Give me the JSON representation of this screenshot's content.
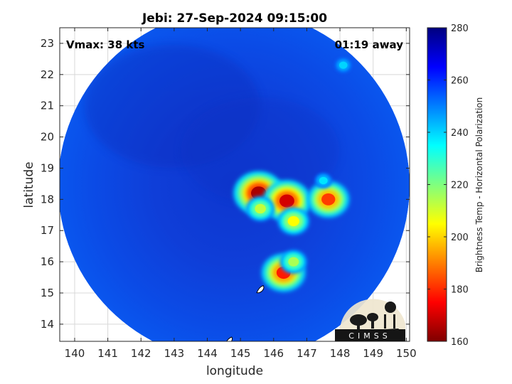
{
  "chart_data": {
    "type": "heatmap",
    "title": "Jebi: 27-Sep-2024 09:15:00",
    "annotations": {
      "vmax": "Vmax: 38 kts",
      "time_away": "01:19 away"
    },
    "xlabel": "longitude",
    "ylabel": "latitude",
    "xlim": [
      139.55,
      150.1
    ],
    "ylim": [
      13.45,
      23.5
    ],
    "x_ticks": [
      140,
      141,
      142,
      143,
      144,
      145,
      146,
      147,
      148,
      149,
      150
    ],
    "y_ticks": [
      14,
      15,
      16,
      17,
      18,
      19,
      20,
      21,
      22,
      23
    ],
    "grid": true,
    "colorbar": {
      "label": "Brightness Temp - Horizontal Polarization",
      "range": [
        160,
        280
      ],
      "ticks": [
        160,
        180,
        200,
        220,
        240,
        260,
        280
      ],
      "colors": [
        "#7f0000",
        "#ff0000",
        "#ff7f00",
        "#ffff00",
        "#7fff7f",
        "#00ffff",
        "#007fff",
        "#0000ff",
        "#00007f"
      ]
    },
    "swath": {
      "center_lon": 144.8,
      "center_lat": 18.45,
      "radius_deg": 5.3,
      "background_value": 258
    },
    "cold_features": [
      {
        "lon": 145.55,
        "lat": 18.2,
        "min_value": 165
      },
      {
        "lon": 146.4,
        "lat": 17.95,
        "min_value": 170
      },
      {
        "lon": 147.65,
        "lat": 18.0,
        "min_value": 182
      },
      {
        "lon": 146.3,
        "lat": 15.65,
        "min_value": 178
      },
      {
        "lon": 146.6,
        "lat": 16.0,
        "min_value": 215
      },
      {
        "lon": 146.6,
        "lat": 17.3,
        "min_value": 205
      },
      {
        "lon": 145.6,
        "lat": 17.7,
        "min_value": 212
      },
      {
        "lon": 147.5,
        "lat": 18.6,
        "min_value": 238
      },
      {
        "lon": 148.1,
        "lat": 22.3,
        "min_value": 240
      }
    ],
    "islands": [
      {
        "lon": 144.65,
        "lat": 13.45
      },
      {
        "lon": 145.6,
        "lat": 15.1
      }
    ]
  },
  "logo": {
    "text": "CIMSS"
  }
}
